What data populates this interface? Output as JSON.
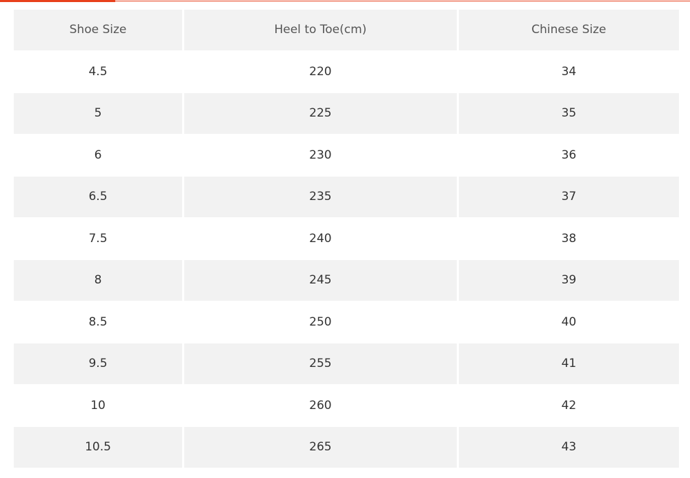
{
  "accent_color": "#e8401c",
  "table": {
    "headers": [
      "Shoe Size",
      "Heel to Toe(cm)",
      "Chinese Size"
    ],
    "rows": [
      [
        "4.5",
        "220",
        "34"
      ],
      [
        "5",
        "225",
        "35"
      ],
      [
        "6",
        "230",
        "36"
      ],
      [
        "6.5",
        "235",
        "37"
      ],
      [
        "7.5",
        "240",
        "38"
      ],
      [
        "8",
        "245",
        "39"
      ],
      [
        "8.5",
        "250",
        "40"
      ],
      [
        "9.5",
        "255",
        "41"
      ],
      [
        "10",
        "260",
        "42"
      ],
      [
        "10.5",
        "265",
        "43"
      ]
    ]
  }
}
